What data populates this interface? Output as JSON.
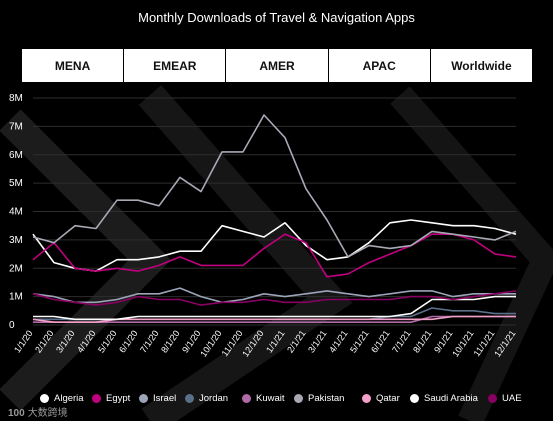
{
  "page_title": "Monthly Downloads of Travel & Navigation Apps",
  "tabs": [
    "MENA",
    "EMEAR",
    "AMER",
    "APAC",
    "Worldwide"
  ],
  "watermark": {
    "logo": "100",
    "text": "大数跨境"
  },
  "chart_data": {
    "type": "line",
    "title": "Monthly Downloads of Travel & Navigation Apps",
    "x": [
      "1/1/20",
      "2/1/20",
      "3/1/20",
      "4/1/20",
      "5/1/20",
      "6/1/20",
      "7/1/20",
      "8/1/20",
      "9/1/20",
      "10/1/20",
      "11/1/20",
      "12/1/20",
      "1/1/21",
      "2/1/21",
      "3/1/21",
      "4/1/21",
      "5/1/21",
      "6/1/21",
      "7/1/21",
      "8/1/21",
      "9/1/21",
      "10/1/21",
      "11/1/21",
      "12/1/21"
    ],
    "y_ticks": [
      "0",
      "1M",
      "2M",
      "3M",
      "4M",
      "5M",
      "6M",
      "7M",
      "8M"
    ],
    "ylim": [
      0,
      8000000
    ],
    "grid": true,
    "legend_position": "bottom",
    "series": [
      {
        "name": "Algeria",
        "color": "#ffffff",
        "values": [
          3200000,
          2200000,
          2000000,
          1900000,
          2300000,
          2300000,
          2400000,
          2600000,
          2600000,
          3500000,
          3300000,
          3100000,
          3600000,
          2800000,
          2300000,
          2400000,
          2900000,
          3600000,
          3700000,
          3600000,
          3500000,
          3500000,
          3400000,
          3200000
        ]
      },
      {
        "name": "Egypt",
        "color": "#c0007e",
        "values": [
          2300000,
          2900000,
          2000000,
          1900000,
          2000000,
          1900000,
          2100000,
          2400000,
          2100000,
          2100000,
          2100000,
          2700000,
          3200000,
          2900000,
          1700000,
          1800000,
          2200000,
          2500000,
          2800000,
          3200000,
          3200000,
          3000000,
          2500000,
          2400000
        ]
      },
      {
        "name": "Israel",
        "color": "#9ba4b8",
        "values": [
          1100000,
          1000000,
          800000,
          800000,
          900000,
          1100000,
          1100000,
          1300000,
          1000000,
          800000,
          900000,
          1100000,
          1000000,
          1100000,
          1200000,
          1100000,
          1000000,
          1100000,
          1200000,
          1200000,
          1000000,
          1100000,
          1100000,
          1100000
        ]
      },
      {
        "name": "Jordan",
        "color": "#5b6e8a",
        "values": [
          200000,
          200000,
          200000,
          200000,
          200000,
          200000,
          200000,
          200000,
          200000,
          200000,
          200000,
          200000,
          200000,
          200000,
          200000,
          200000,
          200000,
          300000,
          300000,
          600000,
          500000,
          500000,
          400000,
          400000
        ]
      },
      {
        "name": "Kuwait",
        "color": "#b06aa6",
        "values": [
          100000,
          100000,
          100000,
          100000,
          100000,
          100000,
          100000,
          100000,
          100000,
          100000,
          100000,
          100000,
          100000,
          100000,
          100000,
          100000,
          100000,
          100000,
          100000,
          300000,
          300000,
          300000,
          300000,
          300000
        ]
      },
      {
        "name": "Pakistan",
        "color": "#a9a9b6",
        "values": [
          3100000,
          2900000,
          3500000,
          3400000,
          4400000,
          4400000,
          4200000,
          5200000,
          4700000,
          6100000,
          6100000,
          7400000,
          6600000,
          4800000,
          3700000,
          2400000,
          2800000,
          2700000,
          2800000,
          3300000,
          3200000,
          3100000,
          3000000,
          3300000
        ]
      },
      {
        "name": "Qatar",
        "color": "#f2a0c8",
        "values": [
          200000,
          100000,
          100000,
          100000,
          200000,
          200000,
          200000,
          200000,
          200000,
          200000,
          200000,
          200000,
          200000,
          200000,
          200000,
          200000,
          200000,
          200000,
          200000,
          200000,
          300000,
          300000,
          300000,
          300000
        ]
      },
      {
        "name": "Saudi Arabia",
        "color": "#ffffff",
        "values": [
          300000,
          300000,
          200000,
          200000,
          200000,
          300000,
          300000,
          300000,
          300000,
          300000,
          300000,
          300000,
          300000,
          300000,
          300000,
          300000,
          300000,
          300000,
          400000,
          900000,
          900000,
          900000,
          1000000,
          1000000
        ]
      },
      {
        "name": "UAE",
        "color": "#8a0062",
        "values": [
          1100000,
          900000,
          800000,
          700000,
          800000,
          1000000,
          900000,
          900000,
          700000,
          800000,
          800000,
          900000,
          800000,
          800000,
          900000,
          900000,
          900000,
          900000,
          1000000,
          1000000,
          900000,
          1000000,
          1100000,
          1200000
        ]
      }
    ]
  }
}
